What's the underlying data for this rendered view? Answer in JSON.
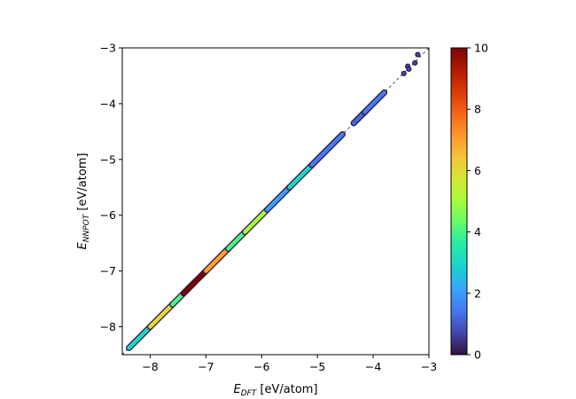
{
  "chart_data": {
    "type": "scatter",
    "title": "",
    "xlabel": {
      "symbol": "E",
      "subscript": "DFT",
      "unit": " [eV/atom]"
    },
    "ylabel": {
      "symbol": "E",
      "subscript": "NNPOT",
      "unit": " [eV/atom]"
    },
    "xlim": [
      -8.5,
      -3
    ],
    "ylim": [
      -8.5,
      -3
    ],
    "xticks": [
      -8,
      -7,
      -6,
      -5,
      -4,
      -3
    ],
    "yticks": [
      -8,
      -7,
      -6,
      -5,
      -4,
      -3
    ],
    "xtick_labels": [
      "−8",
      "−7",
      "−6",
      "−5",
      "−4",
      "−3"
    ],
    "ytick_labels": [
      "−8",
      "−7",
      "−6",
      "−5",
      "−4",
      "−3"
    ],
    "grid": false,
    "legend": "none",
    "reference_line": {
      "style": "dashed",
      "color": "#000000",
      "from": [
        -8.5,
        -8.5
      ],
      "to": [
        -3,
        -3
      ]
    },
    "colorbar": {
      "label": "",
      "range": [
        0,
        10
      ],
      "ticks": [
        0,
        2,
        4,
        6,
        8,
        10
      ],
      "tick_labels": [
        "0",
        "2",
        "4",
        "6",
        "8",
        "10"
      ],
      "colormap": "turbo"
    },
    "density_segments": [
      {
        "x": [
          -8.38,
          -8.0
        ],
        "density": 3
      },
      {
        "x": [
          -8.0,
          -7.6
        ],
        "density": 6
      },
      {
        "x": [
          -7.6,
          -7.2
        ],
        "density": 4
      },
      {
        "x": [
          -7.4,
          -7.0
        ],
        "density": 10
      },
      {
        "x": [
          -7.0,
          -6.6
        ],
        "density": 7
      },
      {
        "x": [
          -6.6,
          -6.3
        ],
        "density": 4
      },
      {
        "x": [
          -6.3,
          -5.9
        ],
        "density": 5
      },
      {
        "x": [
          -5.9,
          -5.5
        ],
        "density": 2
      },
      {
        "x": [
          -5.5,
          -5.1
        ],
        "density": 3
      },
      {
        "x": [
          -5.1,
          -4.55
        ],
        "density": 1.5
      },
      {
        "x": [
          -4.35,
          -4.15
        ],
        "density": 1
      },
      {
        "x": [
          -4.15,
          -3.8
        ],
        "density": 1.5
      }
    ],
    "sparse_points": [
      {
        "x": -3.45,
        "y": -3.46
      },
      {
        "x": -3.38,
        "y": -3.33
      },
      {
        "x": -3.36,
        "y": -3.38
      },
      {
        "x": -3.25,
        "y": -3.27
      },
      {
        "x": -3.2,
        "y": -3.12
      }
    ]
  }
}
